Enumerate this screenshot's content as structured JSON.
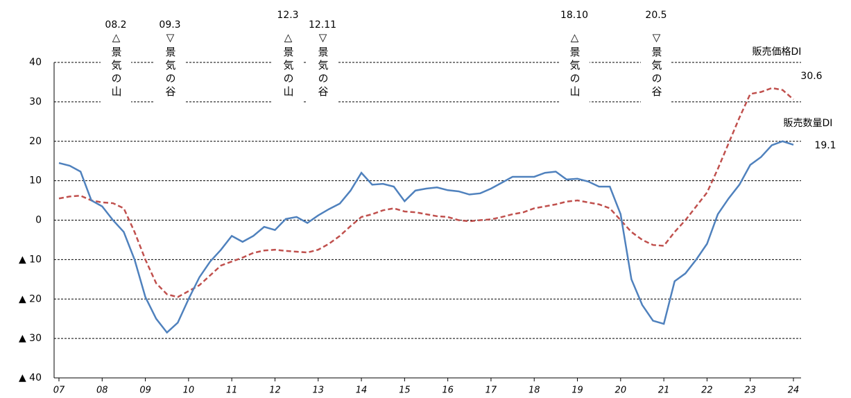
{
  "chart_data": {
    "type": "line",
    "x": [
      7,
      7.25,
      7.5,
      7.75,
      8,
      8.25,
      8.5,
      8.75,
      9,
      9.25,
      9.5,
      9.75,
      10,
      10.25,
      10.5,
      10.75,
      11,
      11.25,
      11.5,
      11.75,
      12,
      12.25,
      12.5,
      12.75,
      13,
      13.25,
      13.5,
      13.75,
      14,
      14.25,
      14.5,
      14.75,
      15,
      15.25,
      15.5,
      15.75,
      16,
      16.25,
      16.5,
      16.75,
      17,
      17.25,
      17.5,
      17.75,
      18,
      18.25,
      18.5,
      18.75,
      19,
      19.25,
      19.5,
      19.75,
      20,
      20.25,
      20.5,
      20.75,
      21,
      21.25,
      21.5,
      21.75,
      22,
      22.25,
      22.5,
      22.75,
      23,
      23.25,
      23.5,
      23.75,
      24
    ],
    "series": [
      {
        "name": "販売価格DI",
        "color": "#c0504d",
        "dashed": true,
        "values": [
          5.5,
          6,
          6.2,
          5,
          4.5,
          4.3,
          3,
          -3,
          -10,
          -16,
          -18.8,
          -19.5,
          -18,
          -16.5,
          -14,
          -11.5,
          -10.5,
          -9.5,
          -8.3,
          -7.7,
          -7.5,
          -7.8,
          -8,
          -8.2,
          -7.5,
          -6,
          -4,
          -1.5,
          0.8,
          1.5,
          2.5,
          3,
          2.2,
          2,
          1.5,
          1,
          0.8,
          0,
          -0.3,
          0,
          0.2,
          0.8,
          1.5,
          2,
          3,
          3.5,
          4,
          4.7,
          5,
          4.5,
          4,
          3,
          0,
          -3,
          -5,
          -6.3,
          -6.5,
          -3,
          0,
          3.5,
          7,
          13,
          19.5,
          26,
          32,
          32.5,
          33.5,
          33,
          30.6
        ],
        "end_label": "30.6"
      },
      {
        "name": "販売数量DI",
        "color": "#4f81bd",
        "dashed": false,
        "values": [
          14.5,
          13.8,
          12.3,
          5,
          3.5,
          0,
          -3,
          -10,
          -19.5,
          -25,
          -28.5,
          -26,
          -20,
          -14.5,
          -10.5,
          -7.5,
          -4,
          -5.5,
          -4,
          -1.7,
          -2.5,
          0.3,
          0.8,
          -0.7,
          1.2,
          2.8,
          4.2,
          7.5,
          12,
          9,
          9.2,
          8.5,
          4.8,
          7.5,
          8,
          8.3,
          7.6,
          7.3,
          6.5,
          6.8,
          8,
          9.5,
          11,
          11,
          11,
          12,
          12.3,
          10.3,
          10.5,
          9.8,
          8.5,
          8.5,
          1.5,
          -15,
          -21.5,
          -25.5,
          -26.3,
          -15.5,
          -13.5,
          -10,
          -6,
          1.5,
          5.5,
          9,
          14,
          16,
          19,
          20,
          19.1
        ],
        "end_label": "19.1"
      }
    ],
    "xlim": [
      7,
      24
    ],
    "xticks": [
      {
        "value": 7,
        "label": "07"
      },
      {
        "value": 8,
        "label": "08"
      },
      {
        "value": 9,
        "label": "09"
      },
      10,
      11,
      12,
      13,
      14,
      15,
      16,
      17,
      18,
      19,
      20,
      21,
      22,
      23,
      24
    ],
    "ylim": [
      -40,
      40
    ],
    "yticks": [
      {
        "value": -40,
        "label": "▲ 40"
      },
      {
        "value": -30,
        "label": "▲ 30"
      },
      {
        "value": -20,
        "label": "▲ 20"
      },
      {
        "value": -10,
        "label": "▲ 10"
      },
      0,
      10,
      20,
      30,
      40
    ],
    "grid": true,
    "annotations": [
      {
        "date": "08.2",
        "label": "△景気の山"
      },
      {
        "date": "09.3",
        "label": "▽景気の谷"
      },
      {
        "date": "12.3",
        "label": "△景気の山"
      },
      {
        "date": "12.11",
        "label": "▽景気の谷"
      },
      {
        "date": "18.10",
        "label": "△景気の山"
      },
      {
        "date": "20.5",
        "label": "▽景気の谷"
      }
    ]
  }
}
